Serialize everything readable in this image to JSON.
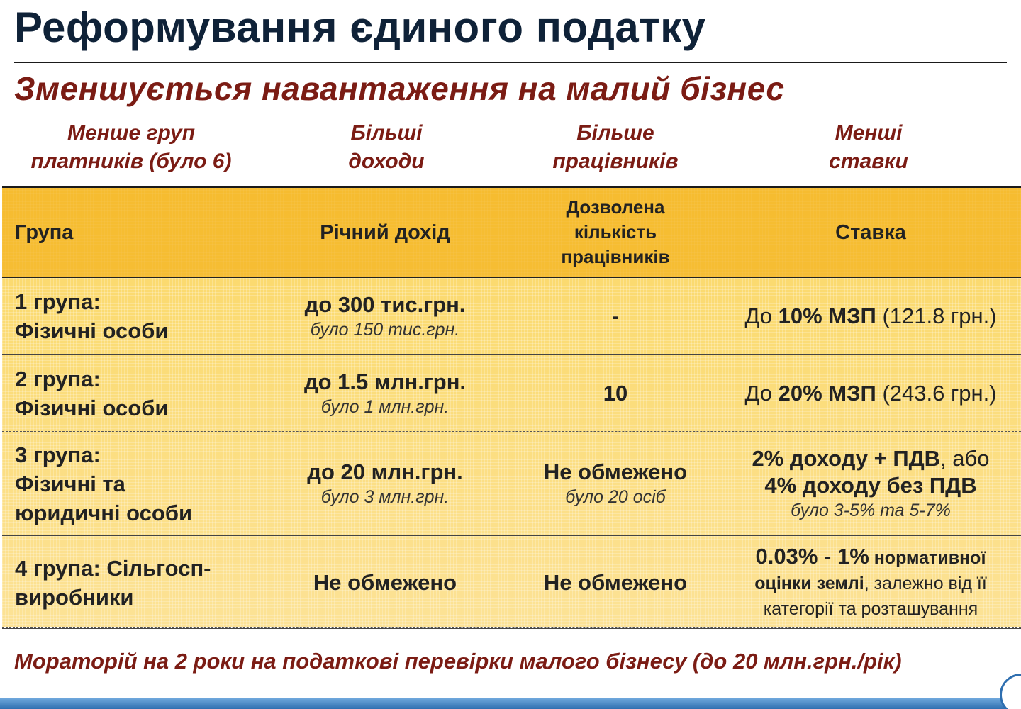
{
  "title": "Реформування єдиного податку",
  "subtitle": "Зменшується навантаження на малий бізнес",
  "categories": [
    {
      "line1": "Менше груп",
      "line2": "платників (було 6)"
    },
    {
      "line1": "Більші",
      "line2": "доходи"
    },
    {
      "line1": "Більше",
      "line2": "працівників"
    },
    {
      "line1": "Менші",
      "line2": "ставки"
    }
  ],
  "table": {
    "headers": {
      "group": "Група",
      "income": "Річний дохід",
      "workers_l1": "Дозволена",
      "workers_l2": "кількість",
      "workers_l3": "працівників",
      "rate": "Ставка"
    },
    "rows": [
      {
        "group_l1": "1 група:",
        "group_l2": "Фізичні особи",
        "income": "до 300 тис.грн.",
        "income_was": "було 150 тис.грн.",
        "workers": "-",
        "rate_pre": "До ",
        "rate_bold": "10% МЗП",
        "rate_post": " (121.8 грн.)"
      },
      {
        "group_l1": "2 група:",
        "group_l2": "Фізичні особи",
        "income": "до 1.5 млн.грн.",
        "income_was": "було 1 млн.грн.",
        "workers": "10",
        "rate_pre": "До ",
        "rate_bold": "20% МЗП",
        "rate_post": " (243.6 грн.)"
      },
      {
        "group_l1": "3 група:",
        "group_l2": "Фізичні та",
        "group_l3": "юридичні особи",
        "income": "до 20 млн.грн.",
        "income_was": "було 3 млн.грн.",
        "workers": "Не обмежено",
        "workers_was": "було 20 осіб",
        "rate_l1_bold": "2% доходу + ПДВ",
        "rate_l1_post": ", або",
        "rate_l2": "4% доходу без ПДВ",
        "rate_was": "було 3-5% та 5-7%"
      },
      {
        "group_l1": "4 група: Сільгосп-",
        "group_l2": "виробники",
        "income": "Не обмежено",
        "workers": "Не обмежено",
        "rate_l1_bold": "0.03% - 1%",
        "rate_l1_post": " нормативної",
        "rate_l2_bold": "оцінки землі",
        "rate_l2_post": ", залежно від її",
        "rate_l3": "категорії та розташування"
      }
    ]
  },
  "footer": "Мораторій на 2 роки на податкові перевірки малого бізнесу (до 20 млн.грн./рік)"
}
